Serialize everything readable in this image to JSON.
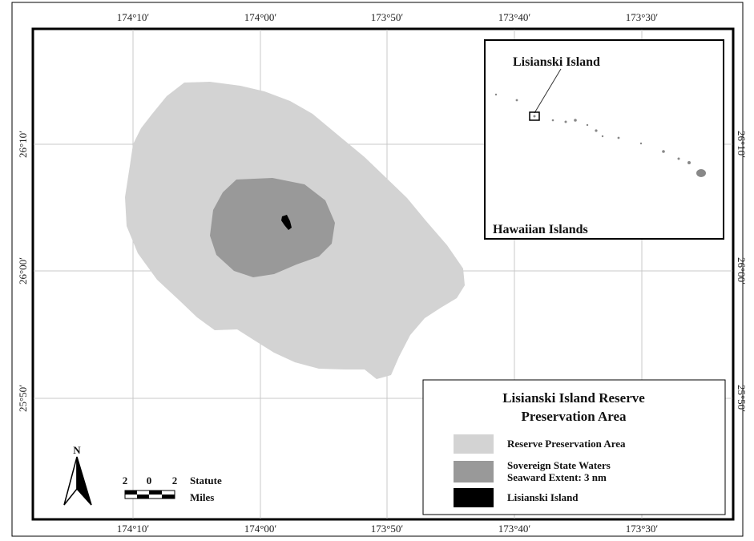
{
  "map": {
    "grid": {
      "top_lon_labels": [
        "174°10′",
        "174°00′",
        "173°50′",
        "173°40′",
        "173°30′"
      ],
      "bottom_lon_labels": [
        "174°10′",
        "174°00′",
        "173°50′",
        "173°40′",
        "173°30′"
      ],
      "left_lat_labels": [
        "26°10′",
        "26°00′",
        "25°50′"
      ],
      "right_lat_labels": [
        "26°10′",
        "26°00′",
        "25°50′"
      ]
    },
    "inset": {
      "island_label": "Lisianski Island",
      "region_label": "Hawaiian Islands"
    },
    "legend": {
      "title_line1": "Lisianski Island Reserve",
      "title_line2": "Preservation Area",
      "items": [
        {
          "label": "Reserve Preservation Area",
          "color": "#d3d3d3"
        },
        {
          "label": "Sovereign State Waters",
          "label2": "Seaward Extent: 3 nm",
          "color": "#999999"
        },
        {
          "label": "Lisianski Island",
          "color": "#000000"
        }
      ]
    },
    "scale_bar": {
      "ticks": [
        "2",
        "0",
        "2"
      ],
      "unit_line1": "Statute",
      "unit_line2": "Miles"
    },
    "north_arrow": {
      "label": "N"
    },
    "colors": {
      "reserve": "#d3d3d3",
      "state_waters": "#999999",
      "island": "#000000",
      "grid": "#c8c8c8",
      "frame": "#000000"
    }
  }
}
